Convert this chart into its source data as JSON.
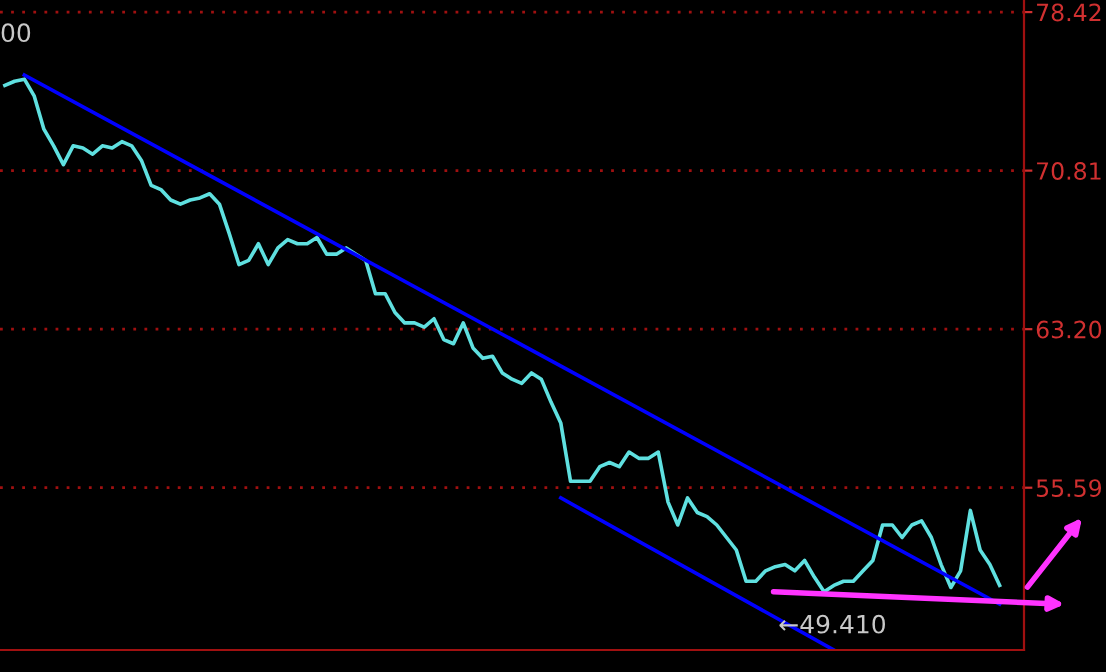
{
  "chart_data": {
    "type": "line",
    "categories": [
      null,
      null,
      null,
      null,
      null,
      null,
      null,
      null,
      null,
      null,
      null,
      null,
      null,
      null,
      null,
      null,
      null,
      null,
      null,
      null,
      null,
      null,
      null,
      null,
      null,
      null,
      null,
      null,
      null,
      null,
      null,
      null,
      null,
      null,
      null,
      null,
      null,
      null,
      null,
      null,
      null,
      null,
      null,
      null,
      null,
      null,
      null,
      null,
      null,
      null,
      null,
      null,
      null,
      null,
      null,
      null,
      null,
      null,
      null,
      null,
      null,
      null,
      null,
      null,
      null,
      null,
      null,
      null,
      null,
      null,
      null,
      null,
      null,
      null,
      null,
      null,
      null,
      null,
      null,
      null,
      null,
      null,
      null,
      null,
      null,
      null,
      null,
      null,
      null,
      null,
      null,
      null,
      null,
      null,
      null,
      null,
      null,
      null,
      null,
      null,
      null,
      null,
      null
    ],
    "series": [
      {
        "color": "#5fe0e0",
        "values": [
          74.9,
          75.1,
          75.2,
          74.4,
          72.8,
          72.0,
          71.1,
          72.0,
          71.9,
          71.6,
          72.0,
          71.9,
          72.2,
          72.0,
          71.3,
          70.1,
          69.9,
          69.4,
          69.2,
          69.4,
          69.5,
          69.7,
          69.2,
          67.8,
          66.3,
          66.5,
          67.3,
          66.3,
          67.1,
          67.5,
          67.3,
          67.3,
          67.6,
          66.8,
          66.8,
          67.1,
          66.8,
          66.5,
          64.9,
          64.9,
          64.0,
          63.5,
          63.5,
          63.3,
          63.7,
          62.7,
          62.5,
          63.5,
          62.3,
          61.8,
          61.9,
          61.1,
          60.8,
          60.6,
          61.1,
          60.8,
          59.7,
          58.7,
          55.9,
          55.9,
          55.9,
          56.6,
          56.8,
          56.6,
          57.3,
          57.0,
          57.0,
          57.3,
          54.9,
          53.8,
          55.1,
          54.4,
          54.2,
          53.8,
          53.2,
          52.6,
          51.1,
          51.1,
          51.6,
          51.8,
          51.9,
          51.6,
          52.1,
          51.3,
          50.6,
          50.9,
          51.1,
          51.1,
          51.6,
          52.1,
          53.8,
          53.8,
          53.2,
          53.8,
          54.0,
          53.2,
          51.9,
          50.8,
          51.6,
          54.5,
          52.6,
          51.9,
          50.9
        ]
      },
      {
        "color": "#0000ff",
        "values": [
          null,
          null,
          75.4,
          null,
          null,
          null,
          null,
          null,
          null,
          null,
          null,
          null,
          null,
          null,
          null,
          null,
          null,
          null,
          null,
          null,
          null,
          null,
          null,
          null,
          null,
          null,
          null,
          null,
          null,
          null,
          null,
          null,
          null,
          null,
          null,
          null,
          null,
          null,
          null,
          null,
          null,
          null,
          null,
          null,
          null,
          null,
          null,
          null,
          null,
          null,
          null,
          null,
          null,
          null,
          null,
          null,
          null,
          null,
          null,
          null,
          null,
          null,
          null,
          null,
          null,
          null,
          null,
          null,
          null,
          null,
          null,
          null,
          null,
          null,
          null,
          null,
          null,
          null,
          null,
          null,
          null,
          null,
          null,
          null,
          null,
          null,
          null,
          null,
          null,
          null,
          null,
          null,
          null,
          null,
          null,
          null,
          null,
          null,
          null,
          null,
          null,
          null,
          50.0
        ]
      },
      {
        "color": "#0000ff",
        "values": [
          null,
          null,
          null,
          null,
          null,
          null,
          null,
          null,
          null,
          null,
          null,
          null,
          null,
          null,
          null,
          null,
          null,
          null,
          null,
          null,
          null,
          null,
          null,
          null,
          null,
          null,
          null,
          null,
          null,
          null,
          null,
          null,
          null,
          null,
          null,
          null,
          null,
          null,
          null,
          null,
          null,
          null,
          null,
          null,
          null,
          null,
          null,
          null,
          null,
          null,
          null,
          null,
          null,
          null,
          null,
          null,
          null,
          55.1,
          null,
          null,
          null,
          null,
          null,
          null,
          null,
          null,
          null,
          null,
          null,
          null,
          null,
          null,
          null,
          null,
          null,
          null,
          null,
          null,
          null,
          null,
          null,
          null,
          null,
          null,
          null,
          47.8,
          null,
          null,
          null,
          null,
          null,
          null,
          null,
          null,
          null,
          null,
          null,
          null,
          null,
          null,
          null,
          null,
          null
        ]
      }
    ],
    "ylim": [
      47.8,
      79.0
    ],
    "yticks": [
      78.42,
      70.81,
      {
        "value": 63.2,
        "label": "63.20"
      },
      55.59
    ],
    "grid": "y",
    "annotations": [
      "00",
      "←49.410"
    ]
  }
}
